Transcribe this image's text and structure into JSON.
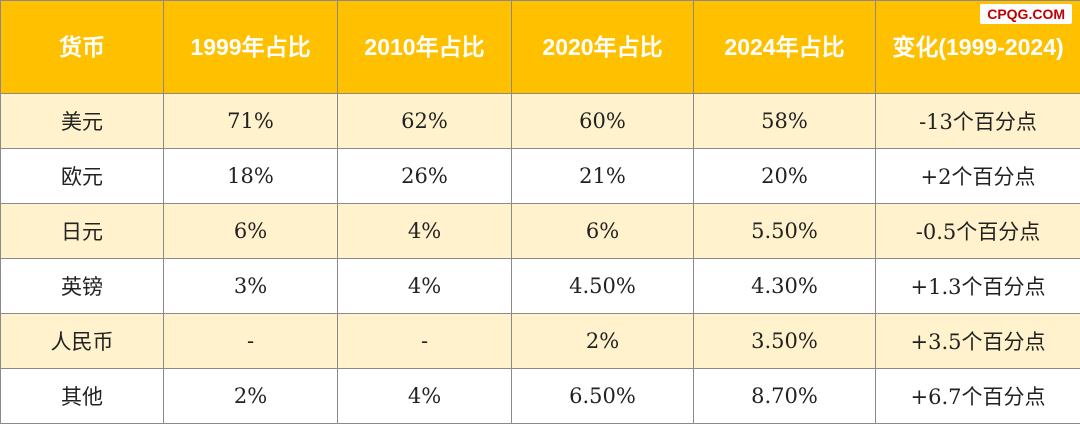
{
  "watermark": "CPQG.COM",
  "table": {
    "headers": [
      "货币",
      "1999年占比",
      "2010年占比",
      "2020年占比",
      "2024年占比",
      "变化(1999-2024)"
    ],
    "rows": [
      [
        "美元",
        "71%",
        "62%",
        "60%",
        "58%",
        "-13个百分点"
      ],
      [
        "欧元",
        "18%",
        "26%",
        "21%",
        "20%",
        "+2个百分点"
      ],
      [
        "日元",
        "6%",
        "4%",
        "6%",
        "5.50%",
        "-0.5个百分点"
      ],
      [
        "英镑",
        "3%",
        "4%",
        "4.50%",
        "4.30%",
        "+1.3个百分点"
      ],
      [
        "人民币",
        "-",
        "-",
        "2%",
        "3.50%",
        "+3.5个百分点"
      ],
      [
        "其他",
        "2%",
        "4%",
        "6.50%",
        "8.70%",
        "+6.7个百分点"
      ]
    ]
  },
  "colors": {
    "header_bg": "#ffc000",
    "header_text": "#ffffff",
    "band_row_bg": "#fff2cc",
    "plain_row_bg": "#ffffff",
    "watermark_text": "#c00000"
  }
}
